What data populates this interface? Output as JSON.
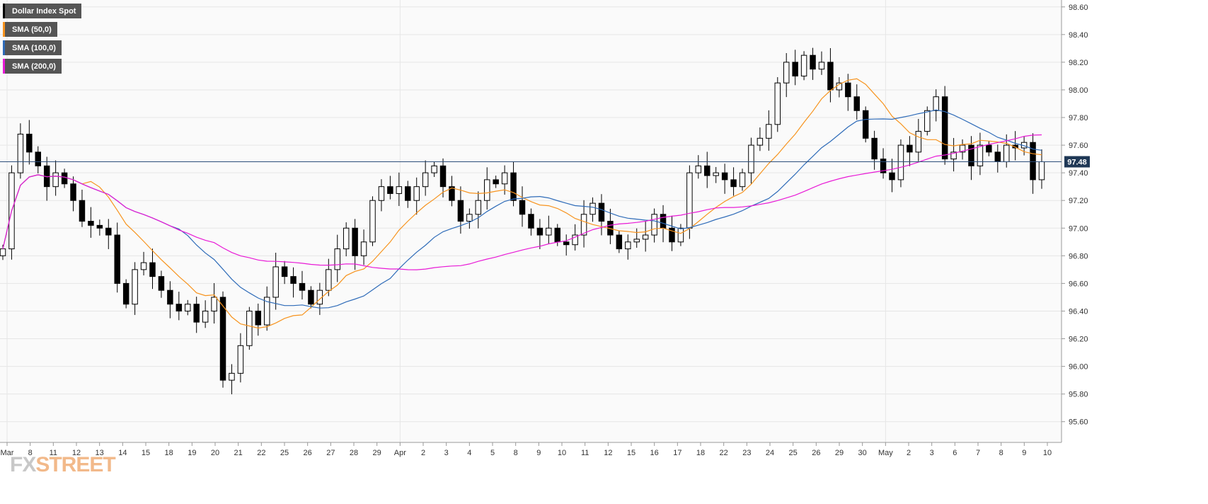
{
  "colors": {
    "sma50": "#f7931e",
    "sma100": "#2e6bb8",
    "sma200": "#e81ad6",
    "price_line": "#2c4e7a",
    "price_box": "#1f3856",
    "candle_up": "#ffffff",
    "candle_down": "#000000",
    "grid": "#e6e6e6",
    "plot_bg": "#fafafa"
  },
  "legend": {
    "items": [
      {
        "label": "Dollar Index Spot",
        "color": "#000000"
      },
      {
        "label": "SMA (50,0)",
        "color": "#f7931e"
      },
      {
        "label": "SMA (100,0)",
        "color": "#2e6bb8"
      },
      {
        "label": "SMA (200,0)",
        "color": "#e81ad6"
      }
    ]
  },
  "logo": {
    "part1": "FX",
    "part2": "STREET"
  },
  "chart_data": {
    "type": "candlestick",
    "instrument": "Dollar Index Spot",
    "ylim": [
      95.45,
      98.65
    ],
    "yticks": [
      95.6,
      95.8,
      96.0,
      96.2,
      96.4,
      96.6,
      96.8,
      97.0,
      97.2,
      97.4,
      97.6,
      97.8,
      98.0,
      98.2,
      98.4,
      98.6
    ],
    "ytick_labels": [
      "95.60",
      "95.80",
      "96.00",
      "96.20",
      "96.40",
      "96.60",
      "96.80",
      "97.00",
      "97.20",
      "97.40",
      "97.60",
      "97.80",
      "98.00",
      "98.20",
      "98.40",
      "98.60"
    ],
    "xticks": [
      "Mar",
      "8",
      "11",
      "12",
      "13",
      "14",
      "15",
      "18",
      "19",
      "20",
      "21",
      "22",
      "25",
      "26",
      "27",
      "28",
      "29",
      "Apr",
      "2",
      "3",
      "4",
      "5",
      "8",
      "9",
      "10",
      "11",
      "12",
      "15",
      "16",
      "17",
      "18",
      "22",
      "23",
      "24",
      "25",
      "26",
      "29",
      "30",
      "May",
      "2",
      "3",
      "6",
      "7",
      "8",
      "9",
      "10"
    ],
    "current_price": 97.48,
    "current_price_label": "97.48",
    "closes": [
      96.85,
      97.4,
      97.68,
      97.55,
      97.45,
      97.3,
      97.4,
      97.32,
      97.2,
      97.05,
      97.02,
      97.0,
      96.95,
      96.6,
      96.45,
      96.7,
      96.75,
      96.65,
      96.55,
      96.45,
      96.4,
      96.45,
      96.32,
      96.4,
      96.5,
      95.9,
      95.95,
      96.15,
      96.4,
      96.3,
      96.5,
      96.72,
      96.65,
      96.6,
      96.55,
      96.45,
      96.55,
      96.7,
      96.85,
      97.0,
      96.8,
      96.9,
      97.2,
      97.3,
      97.25,
      97.3,
      97.2,
      97.3,
      97.4,
      97.45,
      97.3,
      97.2,
      97.05,
      97.1,
      97.2,
      97.35,
      97.32,
      97.4,
      97.2,
      97.1,
      97.0,
      96.95,
      97.0,
      96.9,
      96.88,
      96.95,
      97.1,
      97.18,
      97.05,
      96.95,
      96.85,
      96.9,
      96.92,
      96.95,
      97.1,
      97.0,
      96.9,
      97.0,
      97.4,
      97.45,
      97.38,
      97.4,
      97.35,
      97.3,
      97.4,
      97.6,
      97.65,
      97.75,
      98.05,
      98.2,
      98.1,
      98.25,
      98.15,
      98.2,
      98.0,
      98.05,
      97.95,
      97.85,
      97.65,
      97.5,
      97.4,
      97.35,
      97.6,
      97.55,
      97.7,
      97.85,
      97.95,
      97.5,
      97.55,
      97.6,
      97.45,
      97.6,
      97.55,
      97.48,
      97.6,
      97.58,
      97.62,
      97.35,
      97.48
    ]
  }
}
